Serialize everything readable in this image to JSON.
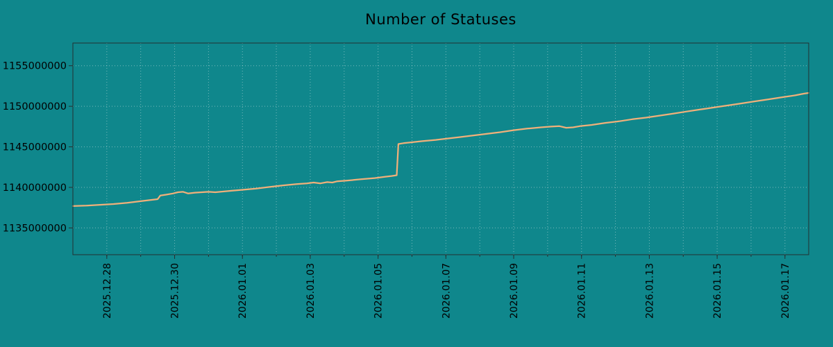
{
  "chart_data": {
    "type": "line",
    "title": "Number of Statuses",
    "xlabel": "",
    "ylabel": "",
    "legend": "none",
    "grid": "on",
    "bg_color": "#0f878c",
    "line_color": "#f0b07a",
    "grid_color": "#cfe4e4",
    "border_color": "#232f30",
    "text_color": "#000000",
    "x_unit": "days since 2025-12-27",
    "xlim": [
      0,
      21.7
    ],
    "ylim": [
      1131700000,
      1157800000
    ],
    "x_ticks": [
      {
        "t": 1,
        "label": "2025.12.28"
      },
      {
        "t": 3,
        "label": "2025.12.30"
      },
      {
        "t": 5,
        "label": "2026.01.01"
      },
      {
        "t": 7,
        "label": "2026.01.03"
      },
      {
        "t": 9,
        "label": "2026.01.05"
      },
      {
        "t": 11,
        "label": "2026.01.07"
      },
      {
        "t": 13,
        "label": "2026.01.09"
      },
      {
        "t": 15,
        "label": "2026.01.11"
      },
      {
        "t": 17,
        "label": "2026.01.13"
      },
      {
        "t": 19,
        "label": "2026.01.15"
      },
      {
        "t": 21,
        "label": "2026.01.17"
      }
    ],
    "x_grid": [
      1,
      2,
      3,
      4,
      5,
      6,
      7,
      8,
      9,
      10,
      11,
      12,
      13,
      14,
      15,
      16,
      17,
      18,
      19,
      20,
      21
    ],
    "y_ticks": [
      {
        "v": 1135000000,
        "label": "1135000000"
      },
      {
        "v": 1140000000,
        "label": "1140000000"
      },
      {
        "v": 1145000000,
        "label": "1145000000"
      },
      {
        "v": 1150000000,
        "label": "1150000000"
      },
      {
        "v": 1155000000,
        "label": "1155000000"
      }
    ],
    "series": [
      {
        "name": "statuses",
        "points": [
          [
            0,
            1137700000
          ],
          [
            0.4,
            1137750000
          ],
          [
            0.8,
            1137850000
          ],
          [
            1.2,
            1137950000
          ],
          [
            1.6,
            1138100000
          ],
          [
            2.0,
            1138300000
          ],
          [
            2.3,
            1138450000
          ],
          [
            2.5,
            1138550000
          ],
          [
            2.58,
            1139000000
          ],
          [
            2.75,
            1139100000
          ],
          [
            2.95,
            1139250000
          ],
          [
            3.1,
            1139400000
          ],
          [
            3.25,
            1139450000
          ],
          [
            3.4,
            1139250000
          ],
          [
            3.6,
            1139350000
          ],
          [
            3.8,
            1139400000
          ],
          [
            4.0,
            1139450000
          ],
          [
            4.2,
            1139400000
          ],
          [
            4.45,
            1139500000
          ],
          [
            4.7,
            1139600000
          ],
          [
            5.0,
            1139700000
          ],
          [
            5.4,
            1139850000
          ],
          [
            5.8,
            1140050000
          ],
          [
            6.2,
            1140250000
          ],
          [
            6.6,
            1140400000
          ],
          [
            6.9,
            1140500000
          ],
          [
            7.1,
            1140600000
          ],
          [
            7.3,
            1140500000
          ],
          [
            7.5,
            1140650000
          ],
          [
            7.65,
            1140600000
          ],
          [
            7.8,
            1140750000
          ],
          [
            8.1,
            1140850000
          ],
          [
            8.5,
            1141000000
          ],
          [
            8.9,
            1141150000
          ],
          [
            9.2,
            1141300000
          ],
          [
            9.4,
            1141400000
          ],
          [
            9.55,
            1141500000
          ],
          [
            9.6,
            1145350000
          ],
          [
            9.75,
            1145450000
          ],
          [
            9.95,
            1145550000
          ],
          [
            10.3,
            1145700000
          ],
          [
            10.7,
            1145850000
          ],
          [
            11.0,
            1146000000
          ],
          [
            11.4,
            1146200000
          ],
          [
            11.8,
            1146400000
          ],
          [
            12.2,
            1146600000
          ],
          [
            12.6,
            1146800000
          ],
          [
            13.0,
            1147050000
          ],
          [
            13.4,
            1147250000
          ],
          [
            13.8,
            1147400000
          ],
          [
            14.1,
            1147500000
          ],
          [
            14.35,
            1147550000
          ],
          [
            14.55,
            1147350000
          ],
          [
            14.75,
            1147400000
          ],
          [
            14.95,
            1147550000
          ],
          [
            15.3,
            1147700000
          ],
          [
            15.7,
            1147950000
          ],
          [
            16.1,
            1148150000
          ],
          [
            16.5,
            1148400000
          ],
          [
            16.9,
            1148600000
          ],
          [
            17.3,
            1148850000
          ],
          [
            17.7,
            1149100000
          ],
          [
            18.1,
            1149350000
          ],
          [
            18.5,
            1149600000
          ],
          [
            18.9,
            1149850000
          ],
          [
            19.3,
            1150100000
          ],
          [
            19.7,
            1150350000
          ],
          [
            20.1,
            1150600000
          ],
          [
            20.5,
            1150850000
          ],
          [
            20.9,
            1151100000
          ],
          [
            21.3,
            1151350000
          ],
          [
            21.55,
            1151550000
          ],
          [
            21.7,
            1151650000
          ]
        ]
      }
    ]
  }
}
